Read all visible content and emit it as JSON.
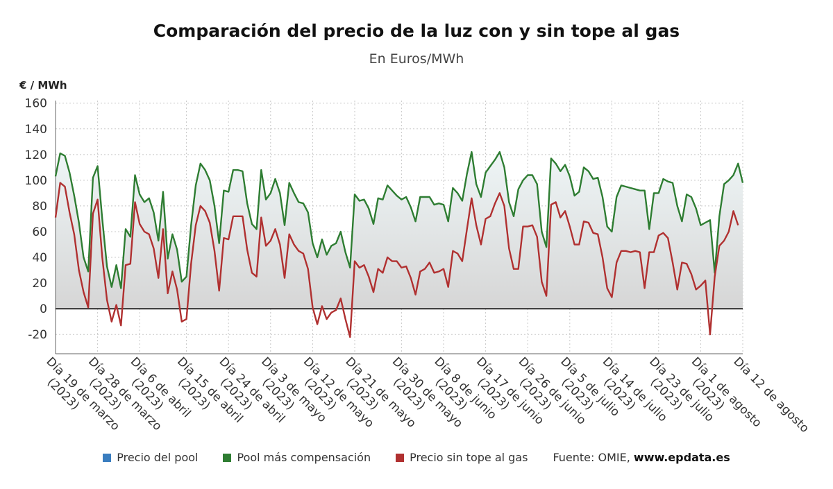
{
  "title": "Comparación del precio de la luz con y sin tope al gas",
  "subtitle": "En Euros/MWh",
  "y_unit": "€ / MWh",
  "legend": [
    {
      "label": "Precio del pool",
      "color": "#3a7dbf"
    },
    {
      "label": "Pool más compensación",
      "color": "#2e7d32"
    },
    {
      "label": "Precio sin tope al gas",
      "color": "#b03030"
    }
  ],
  "source": {
    "prefix": "Fuente: OMIE,",
    "site": "www.epdata.es"
  },
  "colors": {
    "green": "#2e7d32",
    "red": "#b03030",
    "zero_line": "#333333",
    "grid": "#c8c8c8"
  },
  "chart_data": {
    "type": "line",
    "ylim": [
      -35,
      162
    ],
    "yticks": [
      -20,
      0,
      20,
      40,
      60,
      80,
      100,
      120,
      140,
      160
    ],
    "grid": true,
    "legend_position": "bottom",
    "x_tick_labels": [
      [
        "Día 19 de marzo",
        "(2023)"
      ],
      [
        "Día 28 de marzo",
        "(2023)"
      ],
      [
        "Día 6 de abril",
        "(2023)"
      ],
      [
        "Día 15 de abril",
        "(2023)"
      ],
      [
        "Día 24 de abril",
        "(2023)"
      ],
      [
        "Día 3 de mayo",
        "(2023)"
      ],
      [
        "Día 12 de mayo",
        "(2023)"
      ],
      [
        "Día 21 de mayo",
        "(2023)"
      ],
      [
        "Día 30 de mayo",
        "(2023)"
      ],
      [
        "Día 8 de junio",
        "(2023)"
      ],
      [
        "Día 17 de junio",
        "(2023)"
      ],
      [
        "Día 26 de junio",
        "(2023)"
      ],
      [
        "Día 5 de julio",
        "(2023)"
      ],
      [
        "Día 14 de julio",
        "(2023)"
      ],
      [
        "Día 23 de julio",
        "(2023)"
      ],
      [
        "Día 1 de agosto",
        "(2023)"
      ],
      [
        "Día 12 de agosto",
        ""
      ]
    ],
    "series": [
      {
        "name": "Pool más compensación",
        "color": "#2e7d32",
        "values": [
          103,
          121,
          119,
          106,
          88,
          67,
          40,
          29,
          102,
          111,
          70,
          33,
          17,
          34,
          16,
          62,
          56,
          104,
          89,
          83,
          86,
          75,
          53,
          91,
          39,
          58,
          46,
          21,
          25,
          65,
          96,
          113,
          108,
          100,
          80,
          51,
          92,
          91,
          108,
          108,
          107,
          82,
          66,
          62,
          108,
          85,
          90,
          101,
          90,
          65,
          98,
          90,
          83,
          82,
          75,
          51,
          40,
          54,
          42,
          49,
          51,
          60,
          44,
          32,
          89,
          84,
          85,
          78,
          66,
          86,
          85,
          96,
          92,
          88,
          85,
          87,
          79,
          68,
          87,
          87,
          87,
          81,
          82,
          81,
          68,
          94,
          90,
          84,
          105,
          122,
          97,
          87,
          106,
          111,
          116,
          122,
          110,
          83,
          72,
          93,
          100,
          104,
          104,
          97,
          60,
          48,
          117,
          113,
          107,
          112,
          103,
          88,
          91,
          110,
          107,
          101,
          102,
          87,
          64,
          60,
          87,
          96,
          95,
          94,
          93,
          92,
          92,
          62,
          90,
          90,
          101,
          99,
          98,
          80,
          68,
          89,
          87,
          78,
          65,
          67,
          69,
          28,
          72,
          97,
          100,
          104,
          113,
          98
        ]
      },
      {
        "name": "Precio sin tope al gas",
        "color": "#b03030",
        "values": [
          71,
          98,
          95,
          75,
          58,
          30,
          13,
          1,
          74,
          85,
          40,
          7,
          -10,
          3,
          -13,
          34,
          35,
          83,
          66,
          60,
          58,
          47,
          24,
          62,
          12,
          29,
          15,
          -10,
          -8,
          35,
          65,
          80,
          76,
          67,
          45,
          14,
          55,
          54,
          72,
          72,
          72,
          46,
          28,
          25,
          71,
          49,
          53,
          62,
          50,
          24,
          58,
          50,
          45,
          43,
          31,
          1,
          -12,
          2,
          -8,
          -3,
          -1,
          8,
          -8,
          -22,
          37,
          32,
          34,
          25,
          13,
          31,
          28,
          40,
          37,
          37,
          32,
          33,
          24,
          11,
          29,
          31,
          36,
          28,
          29,
          31,
          17,
          45,
          43,
          37,
          62,
          86,
          65,
          50,
          70,
          72,
          82,
          90,
          80,
          47,
          31,
          31,
          64,
          64,
          65,
          56,
          21,
          10,
          81,
          83,
          71,
          76,
          64,
          50,
          50,
          68,
          67,
          59,
          58,
          40,
          16,
          9,
          36,
          45,
          45,
          44,
          45,
          44,
          16,
          44,
          44,
          57,
          59,
          55,
          36,
          15,
          36,
          35,
          27,
          15,
          18,
          22,
          -20,
          25,
          49,
          53,
          60,
          76,
          65
        ]
      }
    ]
  }
}
